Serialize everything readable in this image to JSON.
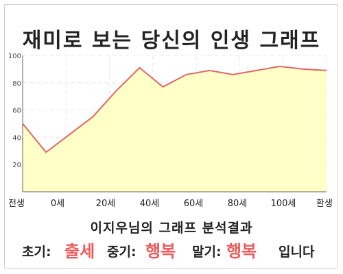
{
  "title": "재미로 보는 당신의 인생 그래프",
  "colors": {
    "line": "#e06666",
    "fill": "#ffffc8",
    "highlight": "#ee5b5b",
    "grid": "#e8e8e8",
    "axis": "#666666"
  },
  "chart_data": {
    "type": "area",
    "x_tick_labels": [
      "전생",
      "0세",
      "20세",
      "40세",
      "60세",
      "80세",
      "100세",
      "환생"
    ],
    "x": [
      "전생",
      "0세",
      "",
      "20세",
      "",
      "40세",
      "",
      "60세",
      "",
      "80세",
      "",
      "100세",
      "",
      "환생"
    ],
    "values": [
      50,
      29,
      42,
      55,
      74,
      91,
      77,
      86,
      89,
      86,
      89,
      92,
      90,
      89
    ],
    "ylim": [
      0,
      100
    ],
    "y_ticks": [
      20,
      40,
      60,
      80,
      100
    ],
    "grid": true
  },
  "result": {
    "title": "이지우님의 그래프 분석결과",
    "early_label": "초기:",
    "early_value": "출세",
    "middle_label": "중기:",
    "middle_value": "행복",
    "late_label": "말기:",
    "late_value": "행복",
    "ending": "입니다"
  }
}
